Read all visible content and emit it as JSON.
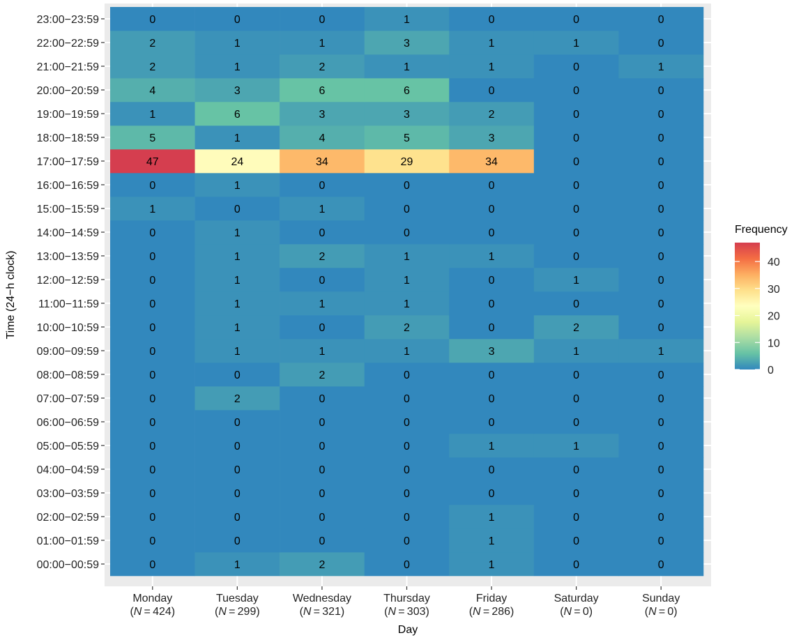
{
  "chart_data": {
    "type": "heatmap",
    "title": "",
    "xlabel": "Day",
    "ylabel": "Time (24−h clock)",
    "x_categories": [
      "Monday",
      "Tuesday",
      "Wednesday",
      "Thursday",
      "Friday",
      "Saturday",
      "Sunday"
    ],
    "x_sublabels": [
      "424",
      "299",
      "321",
      "303",
      "286",
      "0",
      "0"
    ],
    "x_sublabel_prefix": "N",
    "y_categories": [
      "00:00−00:59",
      "01:00−01:59",
      "02:00−02:59",
      "03:00−03:59",
      "04:00−04:59",
      "05:00−05:59",
      "06:00−06:59",
      "07:00−07:59",
      "08:00−08:59",
      "09:00−09:59",
      "10:00−10:59",
      "11:00−11:59",
      "12:00−12:59",
      "13:00−13:59",
      "14:00−14:59",
      "15:00−15:59",
      "16:00−16:59",
      "17:00−17:59",
      "18:00−18:59",
      "19:00−19:59",
      "20:00−20:59",
      "21:00−21:59",
      "22:00−22:59",
      "23:00−23:59"
    ],
    "values": [
      [
        0,
        1,
        2,
        0,
        1,
        0,
        0
      ],
      [
        0,
        0,
        0,
        0,
        1,
        0,
        0
      ],
      [
        0,
        0,
        0,
        0,
        1,
        0,
        0
      ],
      [
        0,
        0,
        0,
        0,
        0,
        0,
        0
      ],
      [
        0,
        0,
        0,
        0,
        0,
        0,
        0
      ],
      [
        0,
        0,
        0,
        0,
        1,
        1,
        0
      ],
      [
        0,
        0,
        0,
        0,
        0,
        0,
        0
      ],
      [
        0,
        2,
        0,
        0,
        0,
        0,
        0
      ],
      [
        0,
        0,
        2,
        0,
        0,
        0,
        0
      ],
      [
        0,
        1,
        1,
        1,
        3,
        1,
        1
      ],
      [
        0,
        1,
        0,
        2,
        0,
        2,
        0
      ],
      [
        0,
        1,
        1,
        1,
        0,
        0,
        0
      ],
      [
        0,
        1,
        0,
        1,
        0,
        1,
        0
      ],
      [
        0,
        1,
        2,
        1,
        1,
        0,
        0
      ],
      [
        0,
        1,
        0,
        0,
        0,
        0,
        0
      ],
      [
        1,
        0,
        1,
        0,
        0,
        0,
        0
      ],
      [
        0,
        1,
        0,
        0,
        0,
        0,
        0
      ],
      [
        47,
        24,
        34,
        29,
        34,
        0,
        0
      ],
      [
        5,
        1,
        4,
        5,
        3,
        0,
        0
      ],
      [
        1,
        6,
        3,
        3,
        2,
        0,
        0
      ],
      [
        4,
        3,
        6,
        6,
        0,
        0,
        0
      ],
      [
        2,
        1,
        2,
        1,
        1,
        0,
        1
      ],
      [
        2,
        1,
        1,
        3,
        1,
        1,
        0
      ],
      [
        0,
        0,
        0,
        1,
        0,
        0,
        0
      ]
    ],
    "legend": {
      "title": "Frequency",
      "placement": "right",
      "range": [
        0,
        47
      ],
      "breaks": [
        0,
        10,
        20,
        30,
        40
      ],
      "palette": [
        "#3288bd",
        "#66c2a5",
        "#abdda4",
        "#e6f598",
        "#ffffbf",
        "#fee08b",
        "#fdae61",
        "#f46d43",
        "#d53e4f"
      ]
    },
    "panel_background": "#ebebeb",
    "grid": true
  }
}
